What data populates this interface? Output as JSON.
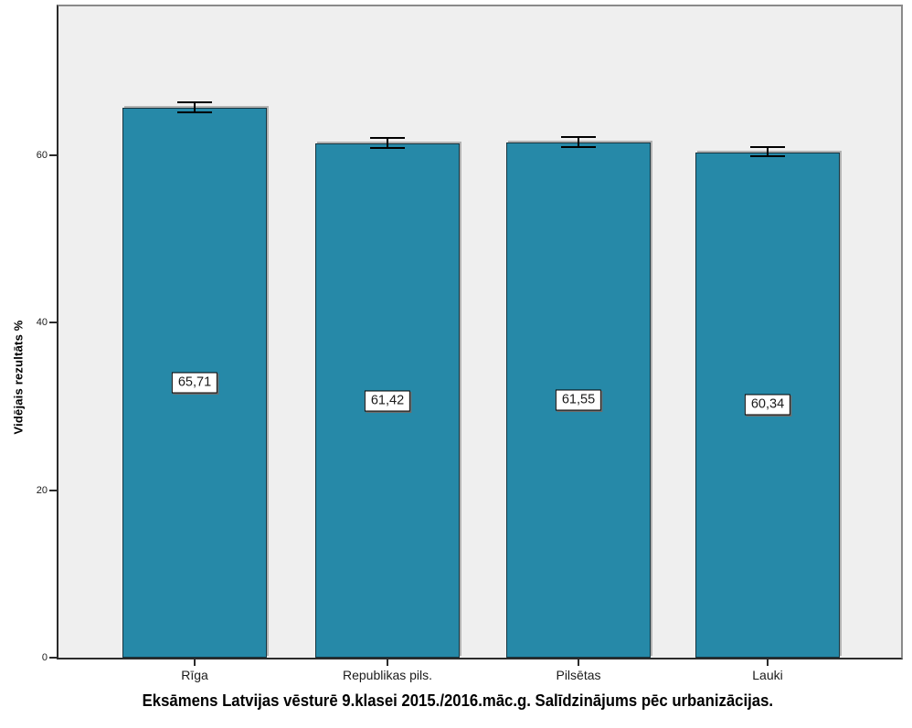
{
  "chart_data": {
    "type": "bar",
    "title": "Eksāmens Latvijas vēsturē 9.klasei 2015./2016.māc.g. Salīdzinājums pēc urbanizācijas.",
    "xlabel": "",
    "ylabel": "Vidējais rezultāts %",
    "categories": [
      "Rīga",
      "Republikas pils.",
      "Pilsētas",
      "Lauki"
    ],
    "values": [
      65.71,
      61.42,
      61.55,
      60.34
    ],
    "value_labels": [
      "65,71",
      "61,42",
      "61,55",
      "60,34"
    ],
    "error_bars": {
      "type": "symmetric",
      "values": [
        0.65,
        0.65,
        0.65,
        0.6
      ]
    },
    "ylim": [
      0,
      78
    ],
    "yticks": [
      0,
      20,
      40,
      60
    ],
    "grid": false,
    "legend": "none",
    "colors": {
      "bar_fill": "#2689A8",
      "bar_border": "#173540",
      "plot_background": "#EFEFEF",
      "frame": "#8A8A8A",
      "axis": "#2B2B2B",
      "error_bar": "#000000",
      "value_box_bg": "#FFFFFF",
      "value_box_border": "#000000"
    }
  }
}
